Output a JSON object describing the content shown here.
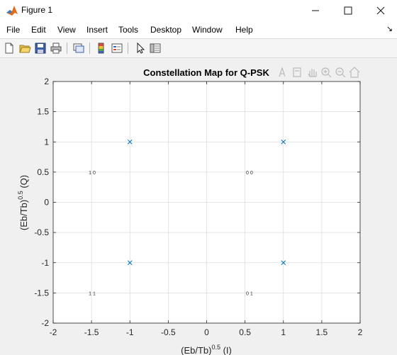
{
  "window": {
    "title": "Figure 1",
    "minimize_icon": "minimize-icon",
    "maximize_icon": "maximize-icon",
    "close_icon": "close-icon"
  },
  "menu": {
    "items": [
      "File",
      "Edit",
      "View",
      "Insert",
      "Tools",
      "Desktop",
      "Window",
      "Help"
    ],
    "dock_icon": "dock-arrow-icon"
  },
  "toolbar": {
    "buttons": [
      "new-figure-icon",
      "open-file-icon",
      "save-icon",
      "print-icon",
      "link-plot-icon",
      "colorbar-icon",
      "legend-icon",
      "edit-plot-arrow-icon",
      "property-inspector-icon"
    ]
  },
  "axes_toolbar": {
    "buttons": [
      "export-icon",
      "brush-icon",
      "pan-icon",
      "zoom-in-icon",
      "zoom-out-icon",
      "home-icon"
    ]
  },
  "chart_data": {
    "type": "scatter",
    "title": "Constellation Map for Q-PSK",
    "xlabel": "(Eb/Tb)",
    "xlabel_sup": "0.5",
    "xlabel_suffix": " (I)",
    "ylabel": "(Eb/Tb)",
    "ylabel_sup": "0.5",
    "ylabel_suffix": " (Q)",
    "xlim": [
      -2,
      2
    ],
    "ylim": [
      -2,
      2
    ],
    "xticks": [
      -2,
      -1.5,
      -1,
      -0.5,
      0,
      0.5,
      1,
      1.5,
      2
    ],
    "yticks": [
      -2,
      -1.5,
      -1,
      -0.5,
      0,
      0.5,
      1,
      1.5,
      2
    ],
    "xtick_labels": [
      "-2",
      "-1.5",
      "-1",
      "-0.5",
      "0",
      "0.5",
      "1",
      "1.5",
      "2"
    ],
    "ytick_labels": [
      "-2",
      "-1.5",
      "-1",
      "-0.5",
      "0",
      "0.5",
      "1",
      "1.5",
      "2"
    ],
    "grid": true,
    "marker": "x",
    "marker_color": "#0072bd",
    "points": [
      {
        "x": -1,
        "y": 1
      },
      {
        "x": 1,
        "y": 1
      },
      {
        "x": -1,
        "y": -1
      },
      {
        "x": 1,
        "y": -1
      }
    ],
    "annotations": [
      {
        "x": -1.5,
        "y": 0.5,
        "text": "1 0"
      },
      {
        "x": 0.55,
        "y": 0.5,
        "text": "0 0"
      },
      {
        "x": -1.5,
        "y": -1.5,
        "text": "1 1"
      },
      {
        "x": 0.55,
        "y": -1.5,
        "text": "0 1"
      }
    ]
  }
}
